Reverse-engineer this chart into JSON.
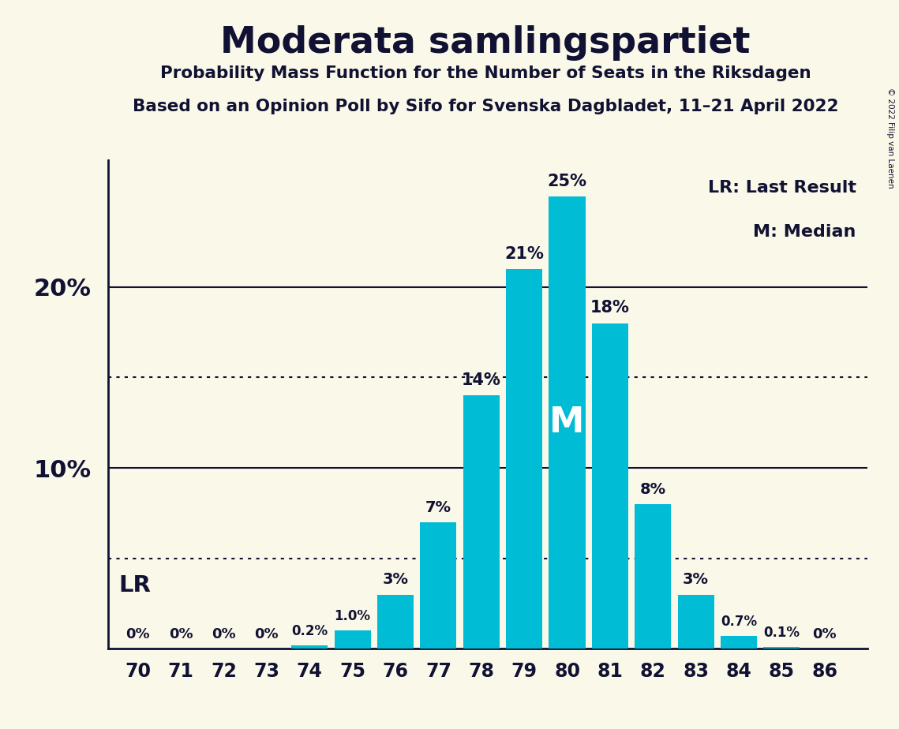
{
  "title": "Moderata samlingspartiet",
  "subtitle1": "Probability Mass Function for the Number of Seats in the Riksdagen",
  "subtitle2": "Based on an Opinion Poll by Sifo for Svenska Dagbladet, 11–21 April 2022",
  "copyright": "© 2022 Filip van Laenen",
  "seats": [
    70,
    71,
    72,
    73,
    74,
    75,
    76,
    77,
    78,
    79,
    80,
    81,
    82,
    83,
    84,
    85,
    86
  ],
  "probabilities": [
    0.0,
    0.0,
    0.0,
    0.0,
    0.2,
    1.0,
    3.0,
    7.0,
    14.0,
    21.0,
    25.0,
    18.0,
    8.0,
    3.0,
    0.7,
    0.1,
    0.0
  ],
  "bar_color": "#00bcd4",
  "background_color": "#faf8e8",
  "axis_color": "#111133",
  "label_color": "#111133",
  "lr_value": 5.0,
  "median_seat": 80,
  "lr_label": "LR",
  "median_label": "M",
  "legend_lr": "LR: Last Result",
  "legend_m": "M: Median",
  "dotted_line_values": [
    5.0,
    15.0
  ],
  "ylim": [
    0,
    27
  ],
  "yticks": [
    0,
    10,
    20
  ],
  "solid_line_values": [
    10,
    20
  ]
}
